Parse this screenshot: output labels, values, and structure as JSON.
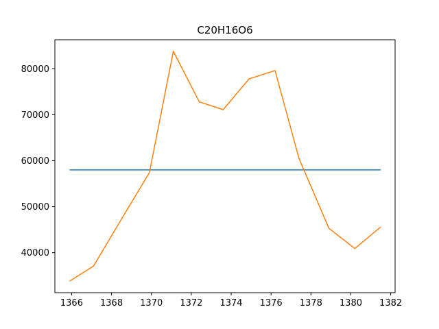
{
  "chart_data": {
    "type": "line",
    "title": "C20H16O6",
    "xlabel": "",
    "ylabel": "",
    "xlim": [
      1365.16,
      1382.22
    ],
    "ylim": [
      31300,
      86300
    ],
    "x_ticks": [
      1366,
      1368,
      1370,
      1372,
      1374,
      1376,
      1378,
      1380,
      1382
    ],
    "y_ticks": [
      40000,
      50000,
      60000,
      70000,
      80000
    ],
    "grid": false,
    "series": [
      {
        "color": "#1f77b4",
        "x": [
          1365.9,
          1381.5
        ],
        "y": [
          58000,
          58000
        ]
      },
      {
        "color": "#ff7f0e",
        "x": [
          1365.9,
          1367.1,
          1368.5,
          1369.9,
          1371.1,
          1372.4,
          1373.6,
          1374.9,
          1376.2,
          1377.4,
          1378.9,
          1380.2,
          1381.5
        ],
        "y": [
          33800,
          37100,
          47300,
          57400,
          83800,
          72800,
          71100,
          77800,
          79600,
          60500,
          45300,
          40900,
          45600
        ]
      }
    ]
  }
}
